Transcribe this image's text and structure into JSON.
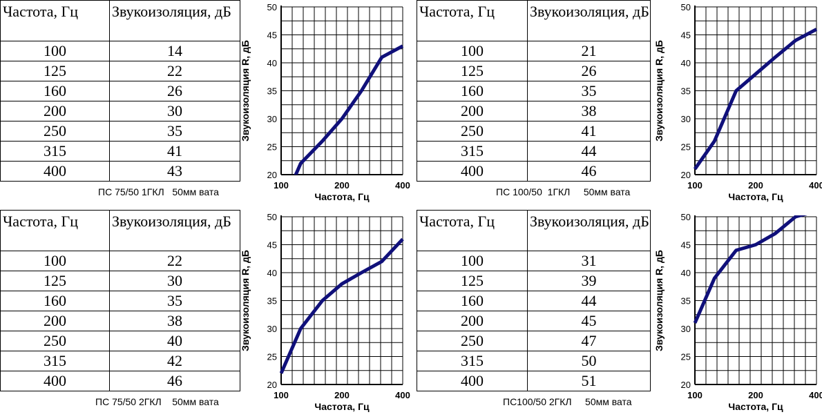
{
  "header": {
    "freq_label": "Частота, Гц",
    "iso_label": "Звукоизоляция, дБ"
  },
  "panels": [
    {
      "caption": "ПС 75/50 1ГКЛ   50мм вата",
      "rows": [
        [
          "100",
          "14"
        ],
        [
          "125",
          "22"
        ],
        [
          "160",
          "26"
        ],
        [
          "200",
          "30"
        ],
        [
          "250",
          "35"
        ],
        [
          "315",
          "41"
        ],
        [
          "400",
          "43"
        ]
      ]
    },
    {
      "caption": "ПС 100/50  1ГКЛ     50мм вата",
      "rows": [
        [
          "100",
          "21"
        ],
        [
          "125",
          "26"
        ],
        [
          "160",
          "35"
        ],
        [
          "200",
          "38"
        ],
        [
          "250",
          "41"
        ],
        [
          "315",
          "44"
        ],
        [
          "400",
          "46"
        ]
      ]
    },
    {
      "caption": "ПС 75/50 2ГКЛ    50мм вата",
      "rows": [
        [
          "100",
          "22"
        ],
        [
          "125",
          "30"
        ],
        [
          "160",
          "35"
        ],
        [
          "200",
          "38"
        ],
        [
          "250",
          "40"
        ],
        [
          "315",
          "42"
        ],
        [
          "400",
          "46"
        ]
      ]
    },
    {
      "caption": "ПС100/50 2ГКЛ     50мм вата",
      "rows": [
        [
          "100",
          "31"
        ],
        [
          "125",
          "39"
        ],
        [
          "160",
          "44"
        ],
        [
          "200",
          "45"
        ],
        [
          "250",
          "47"
        ],
        [
          "315",
          "50"
        ],
        [
          "400",
          "51"
        ]
      ]
    }
  ],
  "chart_data": [
    {
      "type": "line",
      "x": [
        100,
        125,
        160,
        200,
        250,
        315,
        400
      ],
      "series": [
        {
          "values": [
            14,
            22,
            26,
            30,
            35,
            41,
            43
          ]
        }
      ],
      "xlabel": "Частота, Гц",
      "ylabel": "Звукоизоляция R, дБ",
      "ylim": [
        20,
        50
      ],
      "xticks": [
        "100",
        "200",
        "400"
      ],
      "yticks": [
        "20",
        "25",
        "30",
        "35",
        "40",
        "45",
        "50"
      ],
      "grid": true,
      "line_color": "#10107a"
    },
    {
      "type": "line",
      "x": [
        100,
        125,
        160,
        200,
        250,
        315,
        400
      ],
      "series": [
        {
          "values": [
            21,
            26,
            35,
            38,
            41,
            44,
            46
          ]
        }
      ],
      "xlabel": "Частота, Гц",
      "ylabel": "Звукоизоляция R, дБ",
      "ylim": [
        20,
        50
      ],
      "xticks": [
        "100",
        "200",
        "400"
      ],
      "yticks": [
        "20",
        "25",
        "30",
        "35",
        "40",
        "45",
        "50"
      ],
      "grid": true,
      "line_color": "#10107a"
    },
    {
      "type": "line",
      "x": [
        100,
        125,
        160,
        200,
        250,
        315,
        400
      ],
      "series": [
        {
          "values": [
            22,
            30,
            35,
            38,
            40,
            42,
            46
          ]
        }
      ],
      "xlabel": "Частота, Гц",
      "ylabel": "Звукоизоляция R, дБ",
      "ylim": [
        20,
        50
      ],
      "xticks": [
        "100",
        "200",
        "400"
      ],
      "yticks": [
        "20",
        "25",
        "30",
        "35",
        "40",
        "45",
        "50"
      ],
      "grid": true,
      "line_color": "#10107a"
    },
    {
      "type": "line",
      "x": [
        100,
        125,
        160,
        200,
        250,
        315,
        400
      ],
      "series": [
        {
          "values": [
            31,
            39,
            44,
            45,
            47,
            50,
            51
          ]
        }
      ],
      "xlabel": "Частота, Гц",
      "ylabel": "Звукоизоляция R, дБ",
      "ylim": [
        20,
        50
      ],
      "xticks": [
        "100",
        "200",
        "400"
      ],
      "yticks": [
        "20",
        "25",
        "30",
        "35",
        "40",
        "45",
        "50"
      ],
      "grid": true,
      "line_color": "#10107a"
    }
  ]
}
